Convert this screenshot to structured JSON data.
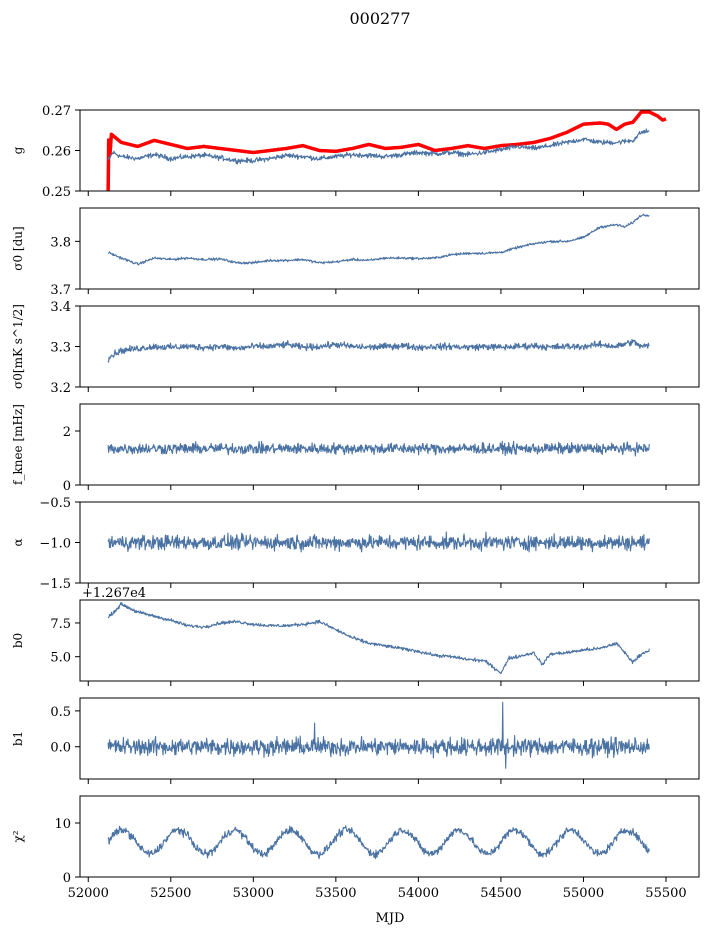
{
  "chart_data": {
    "title": "000277",
    "xlabel": "MJD",
    "x_ticks": [
      "52000",
      "52500",
      "53000",
      "53500",
      "54000",
      "54500",
      "55000",
      "55500"
    ],
    "xlim": [
      51950,
      55700
    ],
    "x_range": [
      52120,
      55400
    ],
    "panels": [
      {
        "type": "line",
        "ylabel": "g",
        "ylim": [
          0.25,
          0.27
        ],
        "yticks": [
          "0.25",
          "0.26",
          "0.27"
        ],
        "series": [
          {
            "color": "#ff0000",
            "style": "thick",
            "points": [
              [
                52120,
                0.249
              ],
              [
                52125,
                0.266
              ],
              [
                52130,
                0.258
              ],
              [
                52140,
                0.264
              ],
              [
                52200,
                0.262
              ],
              [
                52300,
                0.261
              ],
              [
                52400,
                0.2625
              ],
              [
                52500,
                0.2615
              ],
              [
                52600,
                0.2605
              ],
              [
                52700,
                0.261
              ],
              [
                52800,
                0.2605
              ],
              [
                52900,
                0.26
              ],
              [
                53000,
                0.2595
              ],
              [
                53100,
                0.26
              ],
              [
                53200,
                0.2605
              ],
              [
                53300,
                0.2612
              ],
              [
                53400,
                0.26
              ],
              [
                53500,
                0.2598
              ],
              [
                53600,
                0.2605
              ],
              [
                53700,
                0.2615
              ],
              [
                53800,
                0.2605
              ],
              [
                53900,
                0.2608
              ],
              [
                54000,
                0.2615
              ],
              [
                54100,
                0.26
              ],
              [
                54200,
                0.2605
              ],
              [
                54300,
                0.2612
              ],
              [
                54400,
                0.2605
              ],
              [
                54500,
                0.2612
              ],
              [
                54600,
                0.2615
              ],
              [
                54700,
                0.262
              ],
              [
                54800,
                0.263
              ],
              [
                54900,
                0.2645
              ],
              [
                55000,
                0.2665
              ],
              [
                55100,
                0.2668
              ],
              [
                55150,
                0.2665
              ],
              [
                55200,
                0.2652
              ],
              [
                55250,
                0.2665
              ],
              [
                55300,
                0.267
              ],
              [
                55350,
                0.2695
              ],
              [
                55400,
                0.2695
              ],
              [
                55450,
                0.2685
              ],
              [
                55480,
                0.2675
              ],
              [
                55500,
                0.2678
              ]
            ]
          },
          {
            "color": "#4a72a3",
            "style": "thin",
            "noise": 0.0006,
            "points": [
              [
                52120,
                0.2575
              ],
              [
                52150,
                0.2595
              ],
              [
                52200,
                0.2585
              ],
              [
                52300,
                0.258
              ],
              [
                52400,
                0.259
              ],
              [
                52500,
                0.258
              ],
              [
                52600,
                0.2585
              ],
              [
                52700,
                0.2588
              ],
              [
                52800,
                0.2582
              ],
              [
                52900,
                0.2575
              ],
              [
                53000,
                0.2575
              ],
              [
                53100,
                0.258
              ],
              [
                53200,
                0.2588
              ],
              [
                53300,
                0.2585
              ],
              [
                53400,
                0.258
              ],
              [
                53500,
                0.2585
              ],
              [
                53600,
                0.259
              ],
              [
                53700,
                0.2588
              ],
              [
                53800,
                0.2585
              ],
              [
                53900,
                0.259
              ],
              [
                54000,
                0.2595
              ],
              [
                54100,
                0.2592
              ],
              [
                54200,
                0.2595
              ],
              [
                54300,
                0.259
              ],
              [
                54400,
                0.2595
              ],
              [
                54500,
                0.2602
              ],
              [
                54600,
                0.261
              ],
              [
                54700,
                0.2605
              ],
              [
                54800,
                0.2612
              ],
              [
                54900,
                0.262
              ],
              [
                55000,
                0.2628
              ],
              [
                55100,
                0.262
              ],
              [
                55200,
                0.262
              ],
              [
                55300,
                0.2625
              ],
              [
                55350,
                0.2645
              ],
              [
                55400,
                0.2648
              ]
            ]
          }
        ]
      },
      {
        "type": "line",
        "ylabel": "σ0 [du]",
        "ylim": [
          3.7,
          3.87
        ],
        "yticks": [
          "3.7",
          "3.8"
        ],
        "series": [
          {
            "color": "#4a72a3",
            "style": "thin",
            "noise": 0.0025,
            "points": [
              [
                52120,
                3.777
              ],
              [
                52200,
                3.765
              ],
              [
                52300,
                3.752
              ],
              [
                52400,
                3.765
              ],
              [
                52500,
                3.762
              ],
              [
                52600,
                3.765
              ],
              [
                52700,
                3.762
              ],
              [
                52800,
                3.763
              ],
              [
                52900,
                3.755
              ],
              [
                53000,
                3.755
              ],
              [
                53100,
                3.76
              ],
              [
                53200,
                3.76
              ],
              [
                53300,
                3.762
              ],
              [
                53400,
                3.755
              ],
              [
                53500,
                3.757
              ],
              [
                53600,
                3.762
              ],
              [
                53700,
                3.76
              ],
              [
                53800,
                3.765
              ],
              [
                53900,
                3.765
              ],
              [
                54000,
                3.764
              ],
              [
                54100,
                3.765
              ],
              [
                54200,
                3.772
              ],
              [
                54300,
                3.775
              ],
              [
                54400,
                3.775
              ],
              [
                54500,
                3.777
              ],
              [
                54600,
                3.787
              ],
              [
                54700,
                3.795
              ],
              [
                54800,
                3.8
              ],
              [
                54900,
                3.8
              ],
              [
                55000,
                3.808
              ],
              [
                55100,
                3.83
              ],
              [
                55200,
                3.835
              ],
              [
                55250,
                3.83
              ],
              [
                55300,
                3.84
              ],
              [
                55350,
                3.855
              ],
              [
                55400,
                3.855
              ]
            ]
          }
        ]
      },
      {
        "type": "line",
        "ylabel": "σ0[mK s^1/2]",
        "ylim": [
          3.2,
          3.4
        ],
        "yticks": [
          "3.2",
          "3.3",
          "3.4"
        ],
        "series": [
          {
            "color": "#4a72a3",
            "style": "thin",
            "noise": 0.008,
            "points": [
              [
                52120,
                3.27
              ],
              [
                52150,
                3.28
              ],
              [
                52200,
                3.29
              ],
              [
                52300,
                3.295
              ],
              [
                52400,
                3.3
              ],
              [
                52500,
                3.298
              ],
              [
                52600,
                3.3
              ],
              [
                52700,
                3.298
              ],
              [
                52800,
                3.3
              ],
              [
                52900,
                3.295
              ],
              [
                53000,
                3.3
              ],
              [
                53100,
                3.3
              ],
              [
                53200,
                3.305
              ],
              [
                53300,
                3.298
              ],
              [
                53400,
                3.3
              ],
              [
                53500,
                3.305
              ],
              [
                53600,
                3.3
              ],
              [
                53700,
                3.298
              ],
              [
                53800,
                3.3
              ],
              [
                53900,
                3.302
              ],
              [
                54000,
                3.298
              ],
              [
                54100,
                3.3
              ],
              [
                54200,
                3.3
              ],
              [
                54300,
                3.298
              ],
              [
                54400,
                3.3
              ],
              [
                54500,
                3.298
              ],
              [
                54600,
                3.3
              ],
              [
                54700,
                3.302
              ],
              [
                54800,
                3.298
              ],
              [
                54900,
                3.3
              ],
              [
                55000,
                3.3
              ],
              [
                55100,
                3.305
              ],
              [
                55200,
                3.3
              ],
              [
                55300,
                3.312
              ],
              [
                55350,
                3.3
              ],
              [
                55400,
                3.302
              ]
            ]
          }
        ]
      },
      {
        "type": "line",
        "ylabel": "f_knee [mHz]",
        "ylim": [
          0,
          3.0
        ],
        "yticks": [
          "0",
          "2"
        ],
        "series": [
          {
            "color": "#4a72a3",
            "style": "thin",
            "noise": 0.2,
            "base": 1.35
          }
        ]
      },
      {
        "type": "line",
        "ylabel": "α",
        "ylim": [
          -1.5,
          -0.5
        ],
        "yticks": [
          "−1.5",
          "−1.0",
          "−0.5"
        ],
        "series": [
          {
            "color": "#4a72a3",
            "style": "thin",
            "noise": 0.09,
            "base": -1.0
          }
        ]
      },
      {
        "type": "line",
        "ylabel": "b0",
        "ylim": [
          3.2,
          9.2
        ],
        "yticks": [
          "5.0",
          "7.5"
        ],
        "offset_label": "+1.267e4",
        "series": [
          {
            "color": "#4a72a3",
            "style": "thin",
            "noise": 0.12,
            "points": [
              [
                52120,
                7.9
              ],
              [
                52170,
                8.5
              ],
              [
                52200,
                8.9
              ],
              [
                52250,
                8.6
              ],
              [
                52300,
                8.3
              ],
              [
                52400,
                8.0
              ],
              [
                52500,
                7.7
              ],
              [
                52600,
                7.3
              ],
              [
                52700,
                7.2
              ],
              [
                52800,
                7.5
              ],
              [
                52900,
                7.6
              ],
              [
                53000,
                7.4
              ],
              [
                53100,
                7.3
              ],
              [
                53200,
                7.3
              ],
              [
                53300,
                7.4
              ],
              [
                53400,
                7.6
              ],
              [
                53500,
                7.0
              ],
              [
                53600,
                6.4
              ],
              [
                53700,
                6.0
              ],
              [
                53800,
                5.8
              ],
              [
                53900,
                5.6
              ],
              [
                54000,
                5.4
              ],
              [
                54100,
                5.1
              ],
              [
                54200,
                5.0
              ],
              [
                54300,
                4.8
              ],
              [
                54400,
                4.7
              ],
              [
                54500,
                3.8
              ],
              [
                54550,
                4.9
              ],
              [
                54600,
                5.0
              ],
              [
                54700,
                5.3
              ],
              [
                54750,
                4.4
              ],
              [
                54800,
                5.2
              ],
              [
                54900,
                5.3
              ],
              [
                55000,
                5.5
              ],
              [
                55100,
                5.6
              ],
              [
                55200,
                6.0
              ],
              [
                55300,
                4.6
              ],
              [
                55350,
                5.2
              ],
              [
                55400,
                5.5
              ]
            ]
          }
        ]
      },
      {
        "type": "line",
        "ylabel": "b1",
        "ylim": [
          -0.45,
          0.68
        ],
        "yticks": [
          "0.0",
          "0.5"
        ],
        "series": [
          {
            "color": "#4a72a3",
            "style": "thin",
            "noise": 0.12,
            "base": 0.0,
            "spikes": [
              [
                54510,
                0.62
              ],
              [
                54530,
                -0.3
              ],
              [
                53370,
                0.33
              ]
            ]
          }
        ]
      },
      {
        "type": "line",
        "ylabel": "χ²",
        "ylim": [
          0,
          15
        ],
        "yticks": [
          "0",
          "10"
        ],
        "series": [
          {
            "color": "#4a72a3",
            "style": "thin",
            "noise": 0.7,
            "base": 6.5,
            "wave_amp": 2.2,
            "wave_period": 340
          }
        ]
      }
    ]
  }
}
